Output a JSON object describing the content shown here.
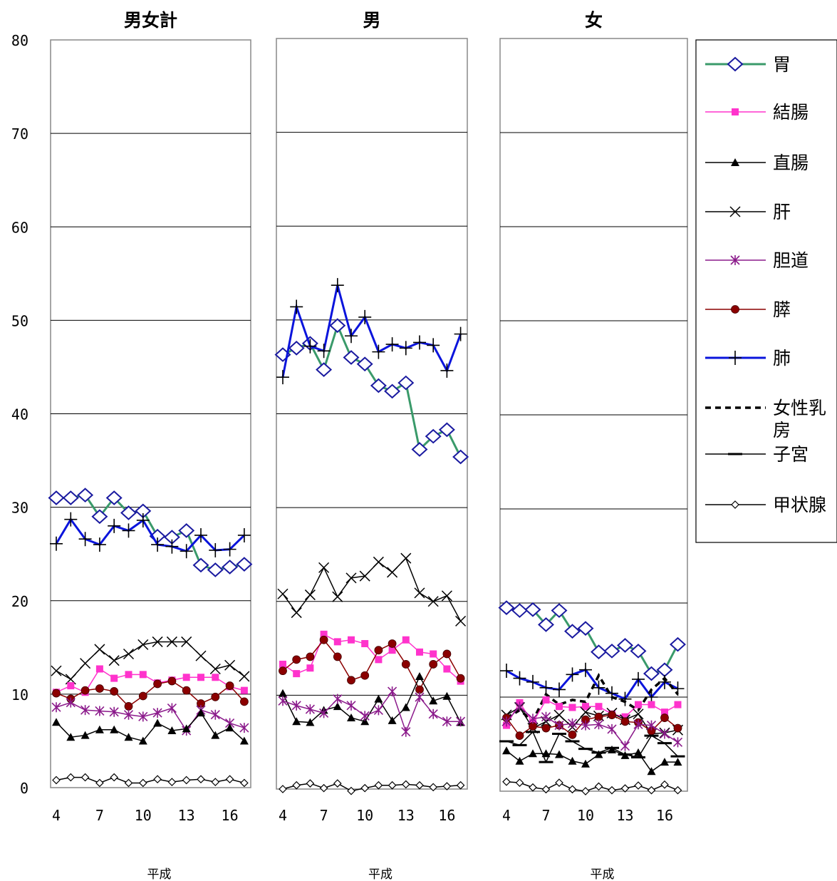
{
  "chart_data": {
    "type": "line",
    "ylim": [
      0,
      80
    ],
    "yticks": [
      "0",
      "10",
      "20",
      "30",
      "40",
      "50",
      "60",
      "70",
      "80"
    ],
    "x": [
      4,
      5,
      6,
      7,
      8,
      9,
      10,
      11,
      12,
      13,
      14,
      15,
      16,
      17
    ],
    "xtick_labels": [
      "4",
      "7",
      "10",
      "13",
      "16"
    ],
    "xtick_values": [
      4,
      7,
      10,
      13,
      16
    ],
    "xlabel": "平成",
    "grid": true,
    "legend_position": "right",
    "legend": [
      {
        "key": "stomach",
        "label": "胃",
        "color": "#3a9a6a",
        "marker": "diamond-large",
        "dash": "",
        "width": 3
      },
      {
        "key": "colon",
        "label": "結腸",
        "color": "#ff33cc",
        "marker": "square",
        "dash": "",
        "width": 1.5
      },
      {
        "key": "rectum",
        "label": "直腸",
        "color": "#000000",
        "marker": "triangle",
        "dash": "",
        "width": 1.5
      },
      {
        "key": "liver",
        "label": "肝",
        "color": "#000000",
        "marker": "x",
        "dash": "",
        "width": 1.5
      },
      {
        "key": "biliary",
        "label": "胆道",
        "color": "#8b1a8b",
        "marker": "star",
        "dash": "",
        "width": 1.5
      },
      {
        "key": "pancreas",
        "label": "膵",
        "color": "#8b0000",
        "marker": "circle",
        "dash": "",
        "width": 1.5
      },
      {
        "key": "lung",
        "label": "肺",
        "color": "#0a14dc",
        "marker": "plus",
        "dash": "",
        "width": 3
      },
      {
        "key": "breast",
        "label": "女性乳房",
        "color": "#000000",
        "marker": "none",
        "dash": "8,6",
        "width": 3.5
      },
      {
        "key": "uterus",
        "label": "子宮",
        "color": "#000000",
        "marker": "hbar",
        "dash": "",
        "width": 1.5
      },
      {
        "key": "thyroid",
        "label": "甲状腺",
        "color": "#000000",
        "marker": "diamond-small",
        "dash": "",
        "width": 1.5
      }
    ],
    "panels": [
      {
        "title": "男女計",
        "series": [
          {
            "key": "stomach",
            "values": [
              31.0,
              31.0,
              31.3,
              29.0,
              31.0,
              29.4,
              29.6,
              26.9,
              26.8,
              27.5,
              23.8,
              23.3,
              23.6,
              23.9
            ]
          },
          {
            "key": "lung",
            "values": [
              26.1,
              28.7,
              26.6,
              26.0,
              28.0,
              27.5,
              28.6,
              26.0,
              25.8,
              25.3,
              27.0,
              25.4,
              25.5,
              27.0
            ]
          },
          {
            "key": "liver",
            "values": [
              12.5,
              11.6,
              13.3,
              14.8,
              13.6,
              14.3,
              15.3,
              15.6,
              15.6,
              15.6,
              14.1,
              12.7,
              13.1,
              11.9
            ]
          },
          {
            "key": "colon",
            "values": [
              10.2,
              10.9,
              10.2,
              12.7,
              11.7,
              12.1,
              12.1,
              11.2,
              11.5,
              11.8,
              11.8,
              11.8,
              10.8,
              10.4
            ]
          },
          {
            "key": "pancreas",
            "values": [
              10.1,
              9.5,
              10.4,
              10.6,
              10.3,
              8.7,
              9.8,
              11.1,
              11.4,
              10.4,
              9.0,
              9.7,
              10.9,
              9.2
            ]
          },
          {
            "key": "biliary",
            "values": [
              8.6,
              9.1,
              8.3,
              8.2,
              8.1,
              7.8,
              7.6,
              8.0,
              8.5,
              6.1,
              8.3,
              7.8,
              6.9,
              6.4
            ]
          },
          {
            "key": "rectum",
            "values": [
              7.0,
              5.4,
              5.6,
              6.2,
              6.2,
              5.4,
              5.0,
              6.9,
              6.1,
              6.3,
              8.0,
              5.6,
              6.4,
              5.0
            ]
          },
          {
            "key": "thyroid",
            "values": [
              0.8,
              1.1,
              1.1,
              0.5,
              1.1,
              0.5,
              0.5,
              0.9,
              0.6,
              0.8,
              0.9,
              0.6,
              0.9,
              0.5
            ]
          }
        ]
      },
      {
        "title": "男",
        "series": [
          {
            "key": "stomach",
            "values": [
              46.3,
              47.0,
              47.5,
              44.7,
              49.4,
              46.0,
              45.3,
              43.0,
              42.4,
              43.3,
              36.2,
              37.6,
              38.3,
              35.4
            ]
          },
          {
            "key": "lung",
            "values": [
              43.9,
              51.4,
              47.2,
              46.7,
              53.7,
              48.3,
              50.3,
              46.6,
              47.4,
              47.0,
              47.6,
              47.3,
              44.6,
              48.5
            ]
          },
          {
            "key": "liver",
            "values": [
              20.8,
              18.8,
              20.7,
              23.6,
              20.5,
              22.5,
              22.7,
              24.2,
              23.1,
              24.6,
              20.9,
              20.0,
              20.6,
              17.9
            ]
          },
          {
            "key": "colon",
            "values": [
              13.3,
              12.3,
              12.9,
              16.5,
              15.7,
              15.9,
              15.5,
              13.8,
              14.8,
              15.9,
              14.6,
              14.4,
              12.8,
              11.5
            ]
          },
          {
            "key": "pancreas",
            "values": [
              12.6,
              13.8,
              14.1,
              15.9,
              14.1,
              11.6,
              12.1,
              14.8,
              15.5,
              13.3,
              10.6,
              13.3,
              14.4,
              11.8
            ]
          },
          {
            "key": "rectum",
            "values": [
              10.2,
              7.2,
              7.1,
              8.4,
              8.8,
              7.6,
              7.2,
              9.6,
              7.3,
              8.7,
              12.0,
              9.4,
              9.9,
              7.1
            ]
          },
          {
            "key": "biliary",
            "values": [
              9.4,
              8.9,
              8.5,
              8.1,
              9.6,
              8.9,
              7.8,
              8.4,
              10.4,
              6.1,
              9.8,
              8.0,
              7.2,
              7.2
            ]
          },
          {
            "key": "thyroid",
            "values": [
              0.0,
              0.4,
              0.6,
              0.1,
              0.6,
              -0.2,
              0.1,
              0.4,
              0.4,
              0.5,
              0.4,
              0.2,
              0.3,
              0.4
            ]
          }
        ]
      },
      {
        "title": "女",
        "series": [
          {
            "key": "stomach",
            "values": [
              19.5,
              19.2,
              19.3,
              17.7,
              19.2,
              17.0,
              17.3,
              14.8,
              14.9,
              15.5,
              14.9,
              12.5,
              12.9,
              15.6
            ]
          },
          {
            "key": "lung",
            "values": [
              12.8,
              12.0,
              11.6,
              11.0,
              10.8,
              12.4,
              12.9,
              11.0,
              10.4,
              9.8,
              11.9,
              10.0,
              11.6,
              10.9
            ]
          },
          {
            "key": "breast",
            "values": [
              7.8,
              8.6,
              7.5,
              10.3,
              9.2,
              9.7,
              9.5,
              12.3,
              10.0,
              9.5,
              8.6,
              10.8,
              12.0,
              10.3
            ]
          },
          {
            "key": "colon",
            "values": [
              7.0,
              9.4,
              7.3,
              9.7,
              9.0,
              8.9,
              9.0,
              9.0,
              8.2,
              7.9,
              9.2,
              9.2,
              8.4,
              9.2
            ]
          },
          {
            "key": "liver",
            "values": [
              8.1,
              8.9,
              6.7,
              7.4,
              8.1,
              6.8,
              8.4,
              8.0,
              8.3,
              7.6,
              8.2,
              6.1,
              6.2,
              6.5
            ]
          },
          {
            "key": "pancreas",
            "values": [
              7.8,
              5.9,
              6.9,
              6.7,
              7.0,
              6.0,
              7.6,
              7.9,
              8.1,
              7.4,
              7.3,
              6.4,
              7.8,
              6.7
            ]
          },
          {
            "key": "biliary",
            "values": [
              7.4,
              9.0,
              7.7,
              7.9,
              7.0,
              7.2,
              7.0,
              7.1,
              6.6,
              4.8,
              7.1,
              7.0,
              6.1,
              5.2
            ]
          },
          {
            "key": "uterus",
            "values": [
              5.3,
              4.9,
              6.3,
              3.1,
              6.1,
              5.3,
              4.5,
              4.1,
              4.6,
              3.9,
              3.6,
              5.9,
              5.1,
              3.7
            ]
          },
          {
            "key": "rectum",
            "values": [
              4.3,
              3.2,
              4.0,
              4.0,
              3.9,
              3.2,
              2.9,
              3.9,
              4.4,
              3.8,
              4.1,
              2.1,
              3.1,
              3.1
            ]
          },
          {
            "key": "thyroid",
            "values": [
              1.0,
              0.9,
              0.4,
              0.2,
              0.9,
              0.2,
              0.0,
              0.5,
              0.1,
              0.3,
              0.6,
              0.1,
              0.7,
              0.1
            ]
          }
        ]
      }
    ]
  }
}
